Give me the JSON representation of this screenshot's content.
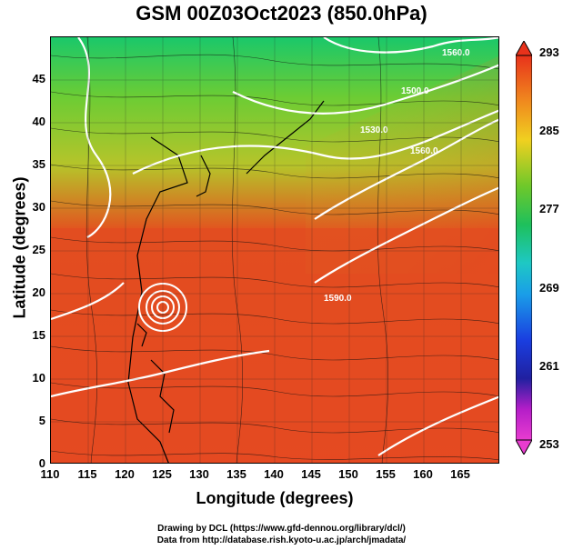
{
  "title": "GSM 00Z03Oct2023 (850.0hPa)",
  "x_axis": {
    "label": "Longitude (degrees)",
    "ticks": [
      "110",
      "115",
      "120",
      "125",
      "130",
      "135",
      "140",
      "145",
      "150",
      "155",
      "160",
      "165"
    ],
    "range": [
      110,
      170
    ]
  },
  "y_axis": {
    "label": "Latitude  (degrees)",
    "ticks": [
      "0",
      "5",
      "10",
      "15",
      "20",
      "25",
      "30",
      "35",
      "40",
      "45"
    ],
    "range": [
      0,
      50
    ]
  },
  "colorbar": {
    "ticks": [
      "293",
      "285",
      "277",
      "269",
      "261",
      "253"
    ],
    "range": [
      253,
      293
    ]
  },
  "contour_labels": [
    "1560.0",
    "1500.0",
    "1530.0",
    "1560.0",
    "1590.0"
  ],
  "footer": {
    "line1": "Drawing by DCL (https://www.gfd-dennou.org/library/dcl/)",
    "line2": "Data from http://database.rish.kyoto-u.ac.jp/arch/jmadata/"
  },
  "colors": {
    "warm": "#e53a1e",
    "mid": "#79c92a",
    "cool": "#17c06b"
  }
}
